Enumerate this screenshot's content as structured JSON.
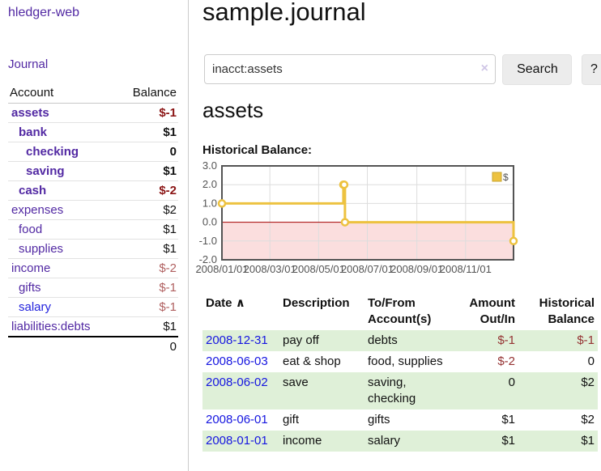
{
  "app": {
    "brand": "hledger-web"
  },
  "sidebar": {
    "journal_link": "Journal",
    "accounts": {
      "headers": {
        "account": "Account",
        "balance": "Balance"
      },
      "rows": [
        {
          "name": "assets",
          "balance": "$-1"
        },
        {
          "name": "bank",
          "balance": "$1"
        },
        {
          "name": "checking",
          "balance": "0"
        },
        {
          "name": "saving",
          "balance": "$1"
        },
        {
          "name": "cash",
          "balance": "$-2"
        },
        {
          "name": "expenses",
          "balance": "$2"
        },
        {
          "name": "food",
          "balance": "$1"
        },
        {
          "name": "supplies",
          "balance": "$1"
        },
        {
          "name": "income",
          "balance": "$-2"
        },
        {
          "name": "gifts",
          "balance": "$-1"
        },
        {
          "name": "salary",
          "balance": "$-1"
        },
        {
          "name": "liabilities:debts",
          "balance": "$1"
        }
      ],
      "total": "0"
    }
  },
  "main": {
    "title": "sample.journal",
    "search": {
      "value": "inacct:assets",
      "clear_icon": "×",
      "button_label": "Search",
      "help_label": "?"
    },
    "account_heading": "assets",
    "chart_label": "Historical Balance:"
  },
  "chart_data": {
    "type": "line",
    "title": "Historical Balance",
    "step": true,
    "series": [
      {
        "name": "$",
        "color": "#edc240",
        "points": [
          [
            "2008-01-01",
            1
          ],
          [
            "2008-06-01",
            2
          ],
          [
            "2008-06-02",
            2
          ],
          [
            "2008-06-03",
            0
          ],
          [
            "2008-12-31",
            -1
          ]
        ]
      }
    ],
    "xrange": [
      "2008-01-01",
      "2008-12-31"
    ],
    "ylim": [
      -2.0,
      3.0
    ],
    "yticks": [
      3.0,
      2.0,
      1.0,
      0.0,
      -1.0,
      -2.0
    ],
    "xticks": [
      "2008/01/01",
      "2008/03/01",
      "2008/05/01",
      "2008/07/01",
      "2008/09/01",
      "2008/11/01"
    ],
    "legend": {
      "label": "$",
      "position": "top-right",
      "swatch_color": "#edc240"
    },
    "grid": true,
    "grid_color": "#dddddd",
    "border_color": "#545454",
    "tick_label_color": "#545454",
    "zero_line_color": "#a40000",
    "negative_fill": "#fbdede"
  },
  "register": {
    "headers": {
      "date": "Date",
      "sort_arrow": "∧",
      "description": "Description",
      "tofrom": "To/From Account(s)",
      "amount": "Amount Out/In",
      "balance": "Historical Balance"
    },
    "rows": [
      {
        "date": "2008-12-31",
        "description": "pay off",
        "accounts": "debts",
        "amount": "$-1",
        "balance": "$-1"
      },
      {
        "date": "2008-06-03",
        "description": "eat & shop",
        "accounts": "food, supplies",
        "amount": "$-2",
        "balance": "0"
      },
      {
        "date": "2008-06-02",
        "description": "save",
        "accounts": "saving, checking",
        "amount": "0",
        "balance": "$2"
      },
      {
        "date": "2008-06-01",
        "description": "gift",
        "accounts": "gifts",
        "amount": "$1",
        "balance": "$2"
      },
      {
        "date": "2008-01-01",
        "description": "income",
        "accounts": "salary",
        "amount": "$1",
        "balance": "$1"
      }
    ]
  }
}
